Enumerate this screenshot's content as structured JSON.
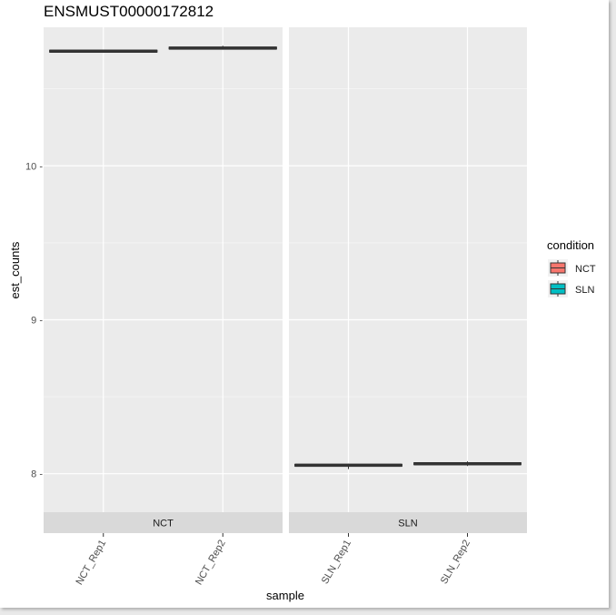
{
  "chart_data": {
    "type": "boxplot",
    "title": "ENSMUST00000172812",
    "xlabel": "sample",
    "ylabel": "est_counts",
    "ylim": [
      7.75,
      10.9
    ],
    "yticks": [
      8,
      9,
      10
    ],
    "ytick_labels": [
      "8 -",
      "9 -",
      "10 -"
    ],
    "grid": true,
    "legend": {
      "title": "condition",
      "position": "right",
      "entries": [
        {
          "label": "NCT",
          "color": "#F8766D"
        },
        {
          "label": "SLN",
          "color": "#00BFC4"
        }
      ]
    },
    "panels": [
      {
        "strip_label": "NCT",
        "categories": [
          "NCT_Rep1",
          "NCT_Rep2"
        ],
        "boxes": [
          {
            "category": "NCT_Rep1",
            "condition": "NCT",
            "median": 10.745,
            "q1": 10.745,
            "q3": 10.745,
            "min": 10.74,
            "max": 10.75
          },
          {
            "category": "NCT_Rep2",
            "condition": "NCT",
            "median": 10.765,
            "q1": 10.765,
            "q3": 10.765,
            "min": 10.755,
            "max": 10.78
          }
        ]
      },
      {
        "strip_label": "SLN",
        "categories": [
          "SLN_Rep1",
          "SLN_Rep2"
        ],
        "boxes": [
          {
            "category": "SLN_Rep1",
            "condition": "SLN",
            "median": 8.055,
            "q1": 8.055,
            "q3": 8.055,
            "min": 8.03,
            "max": 8.065
          },
          {
            "category": "SLN_Rep2",
            "condition": "SLN",
            "median": 8.065,
            "q1": 8.065,
            "q3": 8.065,
            "min": 8.05,
            "max": 8.08
          }
        ]
      }
    ]
  },
  "colors": {
    "panel_bg": "#ebebeb",
    "grid_major": "#ffffff",
    "strip_bg": "#d9d9d9",
    "box_line": "#333333"
  }
}
